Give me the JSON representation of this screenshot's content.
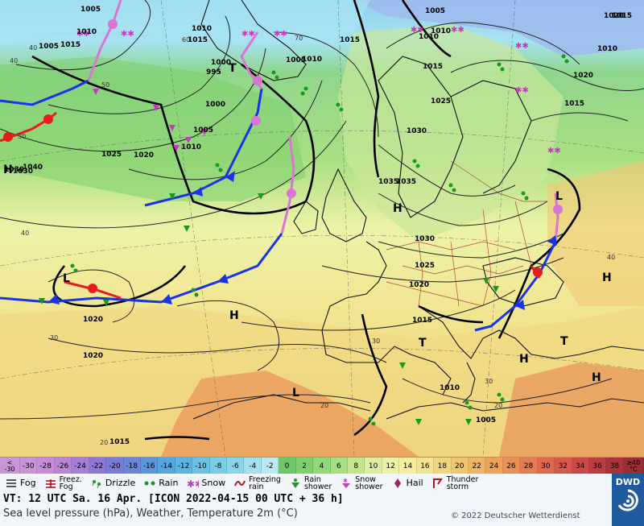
{
  "map": {
    "isobar_labels": [
      "1005",
      "1010",
      "1015",
      "1005",
      "1010",
      "1015",
      "1000",
      "1005",
      "1010",
      "1025",
      "1020",
      "1030",
      "1040",
      "995",
      "1000",
      "1005",
      "1010",
      "1015",
      "1005",
      "1010",
      "1015",
      "1035",
      "1035",
      "1030",
      "1025",
      "1020",
      "1015",
      "1010",
      "1020",
      "1020",
      "1015",
      "1005",
      "1010",
      "1020",
      "1015",
      "1025",
      "1010",
      "1015",
      "1030",
      "1020"
    ],
    "pressure_centers": [
      {
        "label": "H",
        "note": "1030"
      },
      {
        "label": "L",
        "note": ""
      },
      {
        "label": "H",
        "note": ""
      },
      {
        "label": "L",
        "note": ""
      },
      {
        "label": "H",
        "note": ""
      },
      {
        "label": "H",
        "note": ""
      },
      {
        "label": "H",
        "note": ""
      },
      {
        "label": "H",
        "note": ""
      },
      {
        "label": "L",
        "note": ""
      },
      {
        "label": "T",
        "note": ""
      },
      {
        "label": "T",
        "note": ""
      },
      {
        "label": "T",
        "note": ""
      }
    ],
    "temp_labels": [
      "40",
      "60",
      "30",
      "70",
      "40",
      "50",
      "20",
      "40",
      "30",
      "20",
      "30",
      "40",
      "20",
      "30"
    ],
    "colors": {
      "sea_cold": "#9ad9f0",
      "land_green": "#8fd68c",
      "warm": "#f1e38d",
      "hot": "#f6a36b",
      "cold_front": "#1a33e6",
      "warm_front": "#e81c1c",
      "occlusion": "#d976d4"
    }
  },
  "scale": {
    "first": "<\n-30",
    "items": [
      "-30",
      "-28",
      "-26",
      "-24",
      "-22",
      "-20",
      "-18",
      "-16",
      "-14",
      "-12",
      "-10",
      "-8",
      "-6",
      "-4",
      "-2",
      "0",
      "2",
      "4",
      "6",
      "8",
      "10",
      "12",
      "14",
      "16",
      "18",
      "20",
      "22",
      "24",
      "26",
      "28",
      "30",
      "32",
      "34",
      "36",
      "38"
    ],
    "last": "≥40\n°C",
    "colors": [
      "#c896d6",
      "#c98cd8",
      "#b985d6",
      "#a57ed6",
      "#8d78d6",
      "#7a7dd8",
      "#6a86da",
      "#5b96dd",
      "#55a6e0",
      "#5ab5e2",
      "#6bc3e3",
      "#79cde6",
      "#8ad6e8",
      "#a3dfee",
      "#bde8f2",
      "#6cc76a",
      "#7ecf6e",
      "#93d877",
      "#a9df82",
      "#c2e68e",
      "#dceea0",
      "#eef2a8",
      "#f4ee9e",
      "#f3e28f",
      "#f0d57f",
      "#efc56f",
      "#edb464",
      "#eba35c",
      "#e99056",
      "#e57c51",
      "#e0684e",
      "#d9574a",
      "#cc4946",
      "#bb3d40",
      "#a83439"
    ]
  },
  "legend": {
    "fog": "Fog",
    "freezing_fog": "Freez.\nFog",
    "drizzle": "Drizzle",
    "rain": "Rain",
    "snow": "Snow",
    "freezing_rain": "Freezing\nrain",
    "rain_shower": "Rain\nshower",
    "snow_shower": "Snow\nshower",
    "hail": "Hail",
    "thunderstorm": "Thunder\nstorm"
  },
  "footer": {
    "vt": "VT: 12 UTC Sa.  16 Apr. [ICON 2022-04-15  00 UTC + 36 h]",
    "parameters": "Sea level pressure (hPa), Weather, Temperature 2m (°C)",
    "copyright": "© 2022 Deutscher Wetterdienst",
    "logo": "DWD"
  }
}
